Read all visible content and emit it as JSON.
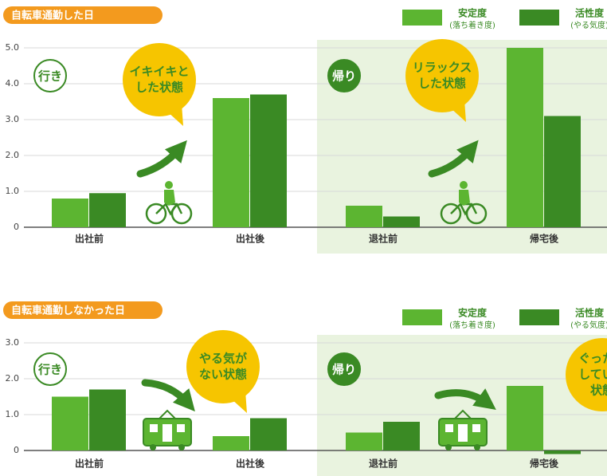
{
  "chart_data": [
    {
      "type": "bar",
      "title": "自転車通勤した日",
      "categories": [
        "出社前",
        "出社後",
        "退社前",
        "帰宅後"
      ],
      "series": [
        {
          "name": "安定度",
          "subname": "(落ち着き度)",
          "color": "#5cb531",
          "values": [
            0.8,
            3.6,
            0.6,
            5.0
          ]
        },
        {
          "name": "活性度",
          "subname": "(やる気度)",
          "color": "#3a8a24",
          "values": [
            0.95,
            3.7,
            0.3,
            3.1
          ]
        }
      ],
      "ylim": [
        0,
        5
      ],
      "yticks": [
        0,
        {
          "value": 1,
          "label": "1.0"
        },
        {
          "value": 2,
          "label": "2.0"
        },
        {
          "value": 3,
          "label": "3.0"
        },
        {
          "value": 4,
          "label": "4.0"
        },
        {
          "value": 5,
          "label": "5.0"
        }
      ],
      "grid": true,
      "sections": [
        "行き",
        "帰り"
      ],
      "callouts": [
        [
          "イキイキと",
          "した状態"
        ],
        [
          "リラックス",
          "した状態"
        ]
      ]
    },
    {
      "type": "bar",
      "title": "自転車通勤しなかった日",
      "categories": [
        "出社前",
        "出社後",
        "退社前",
        "帰宅後"
      ],
      "series": [
        {
          "name": "安定度",
          "subname": "(落ち着き度)",
          "color": "#5cb531",
          "values": [
            1.5,
            0.4,
            0.5,
            1.8
          ]
        },
        {
          "name": "活性度",
          "subname": "(やる気度)",
          "color": "#3a8a24",
          "values": [
            1.7,
            0.9,
            0.8,
            -0.1
          ]
        }
      ],
      "ylim": [
        0,
        3
      ],
      "yticks": [
        0,
        {
          "value": 1,
          "label": "1.0"
        },
        {
          "value": 2,
          "label": "2.0"
        },
        {
          "value": 3,
          "label": "3.0"
        }
      ],
      "grid": true,
      "sections": [
        "行き",
        "帰り"
      ],
      "callouts": [
        [
          "やる気が",
          "ない状態"
        ],
        [
          "ぐったり",
          "している",
          "状態"
        ]
      ]
    }
  ]
}
